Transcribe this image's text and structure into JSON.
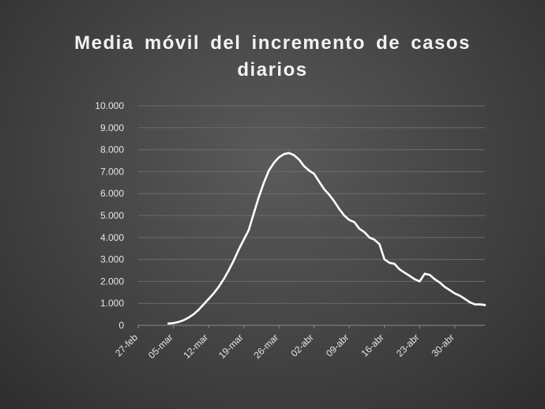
{
  "chart_data": {
    "type": "line",
    "title_lines": [
      "Media móvil del incremento de casos",
      "diarios"
    ],
    "xlabel": "",
    "ylabel": "",
    "ylim": [
      0,
      10000
    ],
    "yticks": [
      0,
      1000,
      2000,
      3000,
      4000,
      5000,
      6000,
      7000,
      8000,
      9000,
      10000
    ],
    "ytick_labels": [
      "0",
      "1.000",
      "2.000",
      "3.000",
      "4.000",
      "5.000",
      "6.000",
      "7.000",
      "8.000",
      "9.000",
      "10.000"
    ],
    "x_start": "2020-02-27",
    "x_end": "2020-05-06",
    "xtick_dates": [
      "2020-02-27",
      "2020-03-05",
      "2020-03-12",
      "2020-03-19",
      "2020-03-26",
      "2020-04-02",
      "2020-04-09",
      "2020-04-16",
      "2020-04-23",
      "2020-04-30"
    ],
    "xtick_labels": [
      "27-feb",
      "05-mar",
      "12-mar",
      "19-mar",
      "26-mar",
      "02-abr",
      "09-abr",
      "16-abr",
      "23-abr",
      "30-abr"
    ],
    "grid": true,
    "line_color": "#ffffff",
    "series": [
      {
        "x": [
          "2020-03-04",
          "2020-03-05",
          "2020-03-06",
          "2020-03-07",
          "2020-03-08",
          "2020-03-09",
          "2020-03-10",
          "2020-03-11",
          "2020-03-12",
          "2020-03-13",
          "2020-03-14",
          "2020-03-15",
          "2020-03-16",
          "2020-03-17",
          "2020-03-18",
          "2020-03-19",
          "2020-03-20",
          "2020-03-21",
          "2020-03-22",
          "2020-03-23",
          "2020-03-24",
          "2020-03-25",
          "2020-03-26",
          "2020-03-27",
          "2020-03-28",
          "2020-03-29",
          "2020-03-30",
          "2020-03-31",
          "2020-04-01",
          "2020-04-02",
          "2020-04-03",
          "2020-04-04",
          "2020-04-05",
          "2020-04-06",
          "2020-04-07",
          "2020-04-08",
          "2020-04-09",
          "2020-04-10",
          "2020-04-11",
          "2020-04-12",
          "2020-04-13",
          "2020-04-14",
          "2020-04-15",
          "2020-04-16",
          "2020-04-17",
          "2020-04-18",
          "2020-04-19",
          "2020-04-20",
          "2020-04-21",
          "2020-04-22",
          "2020-04-23",
          "2020-04-24",
          "2020-04-25",
          "2020-04-26",
          "2020-04-27",
          "2020-04-28",
          "2020-04-29",
          "2020-04-30",
          "2020-05-01",
          "2020-05-02",
          "2020-05-03",
          "2020-05-04",
          "2020-05-05",
          "2020-05-06"
        ],
        "values": [
          80,
          100,
          150,
          230,
          350,
          500,
          700,
          950,
          1200,
          1450,
          1750,
          2100,
          2500,
          2950,
          3450,
          3900,
          4350,
          5100,
          5850,
          6500,
          7050,
          7400,
          7650,
          7800,
          7850,
          7750,
          7550,
          7250,
          7050,
          6900,
          6550,
          6200,
          5950,
          5650,
          5300,
          5000,
          4800,
          4700,
          4400,
          4250,
          4000,
          3900,
          3700,
          3000,
          2850,
          2800,
          2550,
          2400,
          2250,
          2100,
          2000,
          2350,
          2300,
          2100,
          1950,
          1750,
          1600,
          1450,
          1350,
          1200,
          1050,
          950,
          950,
          920
        ]
      }
    ]
  }
}
